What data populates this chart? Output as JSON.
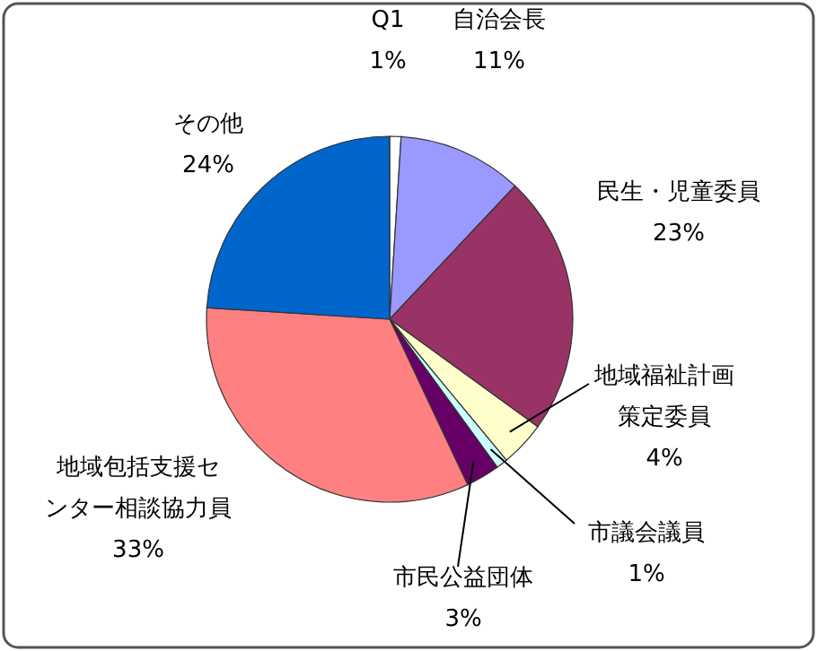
{
  "chart_data": {
    "type": "pie",
    "categories": [
      "Q1",
      "自治会長",
      "民生・児童委員",
      "地域福祉計画策定委員",
      "市議会議員",
      "市民公益団体",
      "地域包括支援センター相談協力員",
      "その他"
    ],
    "values": [
      1,
      11,
      23,
      4,
      1,
      3,
      33,
      24
    ],
    "colors": [
      "#ffffff",
      "#9999ff",
      "#993366",
      "#ffffcc",
      "#ccffff",
      "#660066",
      "#ff8080",
      "#0066cc"
    ],
    "value_labels": [
      "1%",
      "11%",
      "23%",
      "4%",
      "1%",
      "3%",
      "33%",
      "24%"
    ],
    "legend": false
  }
}
